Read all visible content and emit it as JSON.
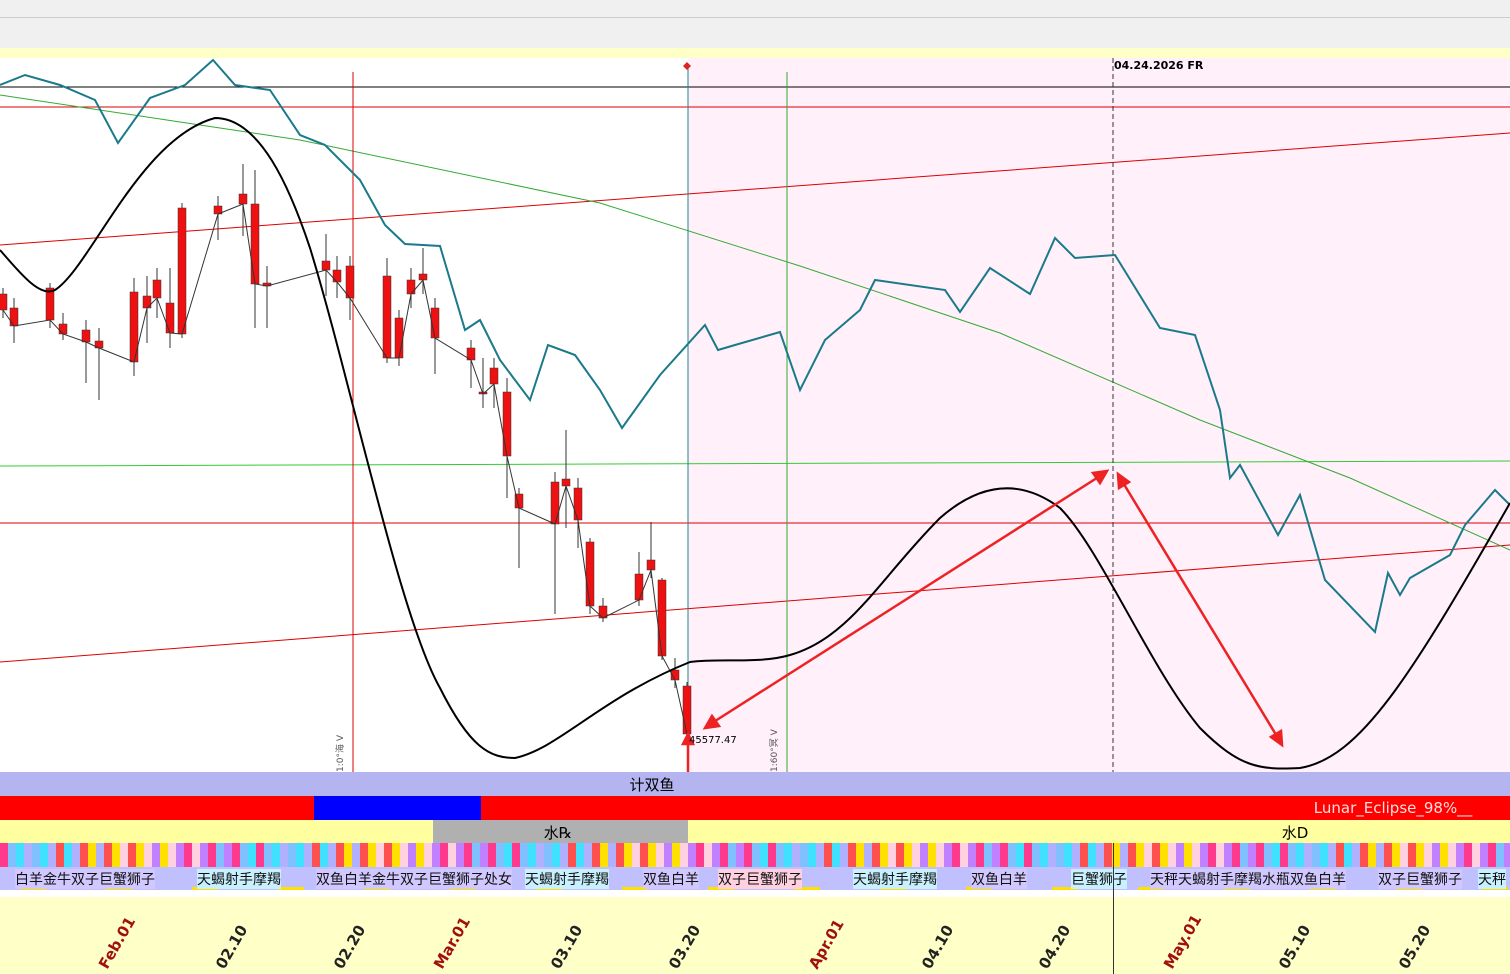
{
  "cursor_date": "04.24.2026 FR",
  "price_label": "45577.47",
  "line_notes": [
    "1:0°海 V",
    "1:60°冥 V"
  ],
  "bands": {
    "row1": "计双鱼",
    "row2": "Lunar_Eclipse_98%__",
    "row3": [
      "水℞",
      "水D"
    ]
  },
  "zodiac_row": [
    "白羊金牛双子巨蟹狮子",
    "天蝎射手摩羯",
    "双鱼白羊金牛双子巨蟹狮子处女",
    "天蝎射手摩羯",
    "双鱼白羊",
    "双子巨蟹狮子",
    "天蝎射手摩羯",
    "双鱼白羊",
    "巨蟹狮子",
    "天秤天蝎射手摩羯水瓶双鱼白羊",
    "双子巨蟹狮子",
    "天秤"
  ],
  "date_axis": [
    "Feb.01",
    "02.10",
    "02.20",
    "Mar.01",
    "03.10",
    "03.20",
    "Apr.01",
    "04.10",
    "04.20",
    "May.01",
    "05.10",
    "05.20"
  ]
}
